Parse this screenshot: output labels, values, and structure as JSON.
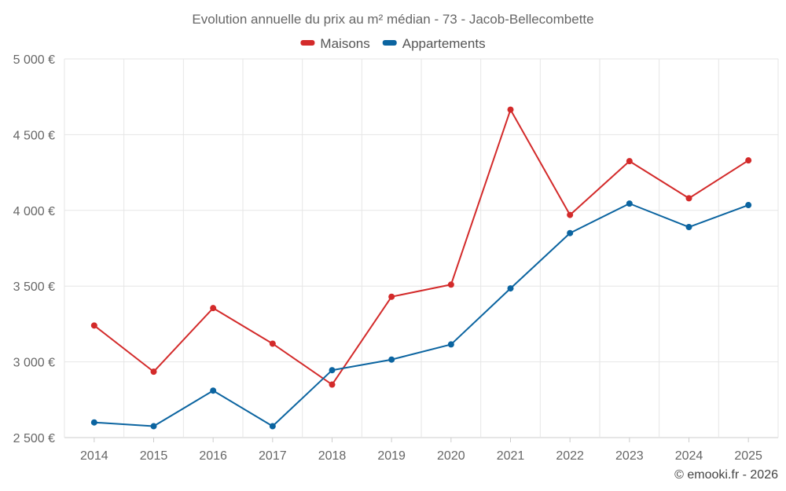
{
  "chart_data": {
    "type": "line",
    "title": "Evolution annuelle du prix au m² médian - 73 - Jacob-Bellecombette",
    "categories": [
      "2014",
      "2015",
      "2016",
      "2017",
      "2018",
      "2019",
      "2020",
      "2021",
      "2022",
      "2023",
      "2024",
      "2025"
    ],
    "series": [
      {
        "name": "Maisons",
        "color": "#d32a2a",
        "values": [
          3240,
          2935,
          3355,
          3120,
          2850,
          3430,
          3510,
          4665,
          3970,
          4325,
          4080,
          4330
        ]
      },
      {
        "name": "Appartements",
        "color": "#0b64a0",
        "values": [
          2600,
          2575,
          2810,
          2575,
          2945,
          3015,
          3115,
          3485,
          3850,
          4045,
          3890,
          4035
        ]
      }
    ],
    "ylim": [
      2500,
      5000
    ],
    "yticks": [
      2500,
      3000,
      3500,
      4000,
      4500,
      5000
    ],
    "ytick_labels": [
      "2 500 €",
      "3 000 €",
      "3 500 €",
      "4 000 €",
      "4 500 €",
      "5 000 €"
    ],
    "xlabel": "",
    "ylabel": "",
    "grid": true,
    "legend_position": "top-center"
  },
  "credit": "© emooki.fr - 2026"
}
